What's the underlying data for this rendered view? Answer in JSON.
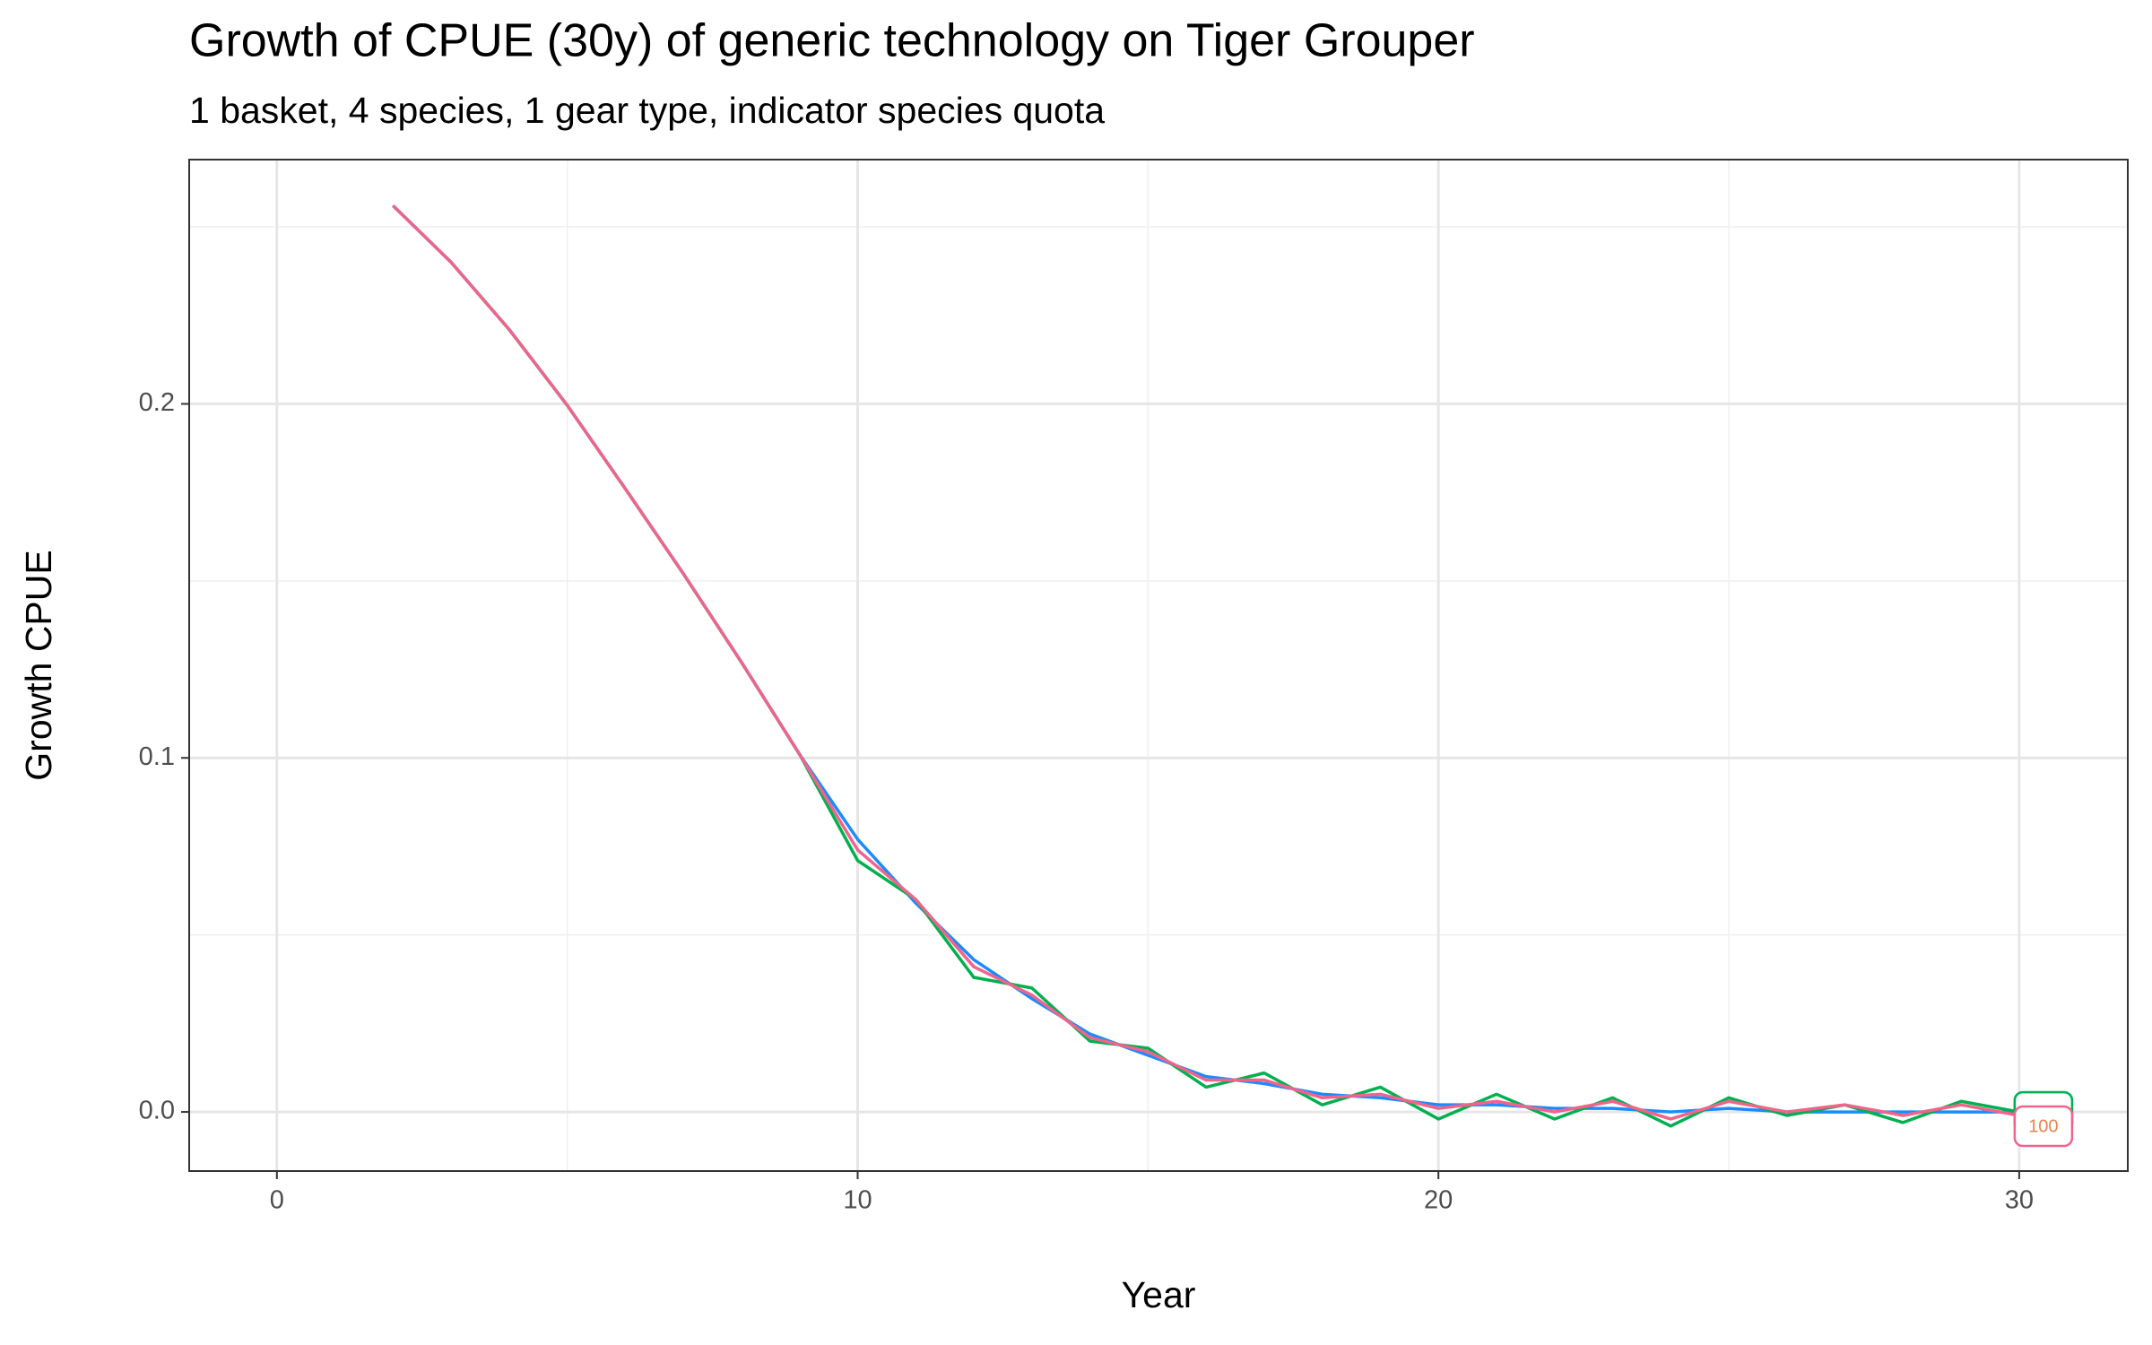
{
  "chart_data": {
    "type": "line",
    "title": "Growth of CPUE (30y) of generic technology on Tiger Grouper",
    "subtitle": "1 basket, 4 species, 1 gear type, indicator species quota",
    "x_label": "Year",
    "y_label": "Growth CPUE",
    "x": [
      2,
      3,
      4,
      5,
      6,
      7,
      8,
      9,
      10,
      11,
      12,
      13,
      14,
      15,
      16,
      17,
      18,
      19,
      20,
      21,
      22,
      23,
      24,
      25,
      26,
      27,
      28,
      29,
      30
    ],
    "series": [
      {
        "color": "#1a8cff",
        "values": [
          0.256,
          0.24,
          0.221,
          0.1996,
          0.176,
          0.152,
          0.127,
          0.101,
          0.077,
          0.059,
          0.043,
          0.032,
          0.022,
          0.016,
          0.01,
          0.008,
          0.005,
          0.004,
          0.002,
          0.002,
          0.001,
          0.001,
          0.0,
          0.001,
          0.0,
          0.0,
          0.0,
          0.0,
          0.0
        ]
      },
      {
        "color": "#00b050",
        "values": [
          0.256,
          0.24,
          0.221,
          0.1996,
          0.176,
          0.152,
          0.127,
          0.101,
          0.071,
          0.06,
          0.038,
          0.035,
          0.02,
          0.018,
          0.007,
          0.011,
          0.002,
          0.007,
          -0.002,
          0.005,
          -0.002,
          0.004,
          -0.004,
          0.004,
          -0.001,
          0.002,
          -0.003,
          0.003,
          0.0
        ]
      },
      {
        "name": "100",
        "color": "#f0648c",
        "label_color": "#e8844a",
        "values": [
          0.256,
          0.24,
          0.221,
          0.1996,
          0.176,
          0.152,
          0.127,
          0.101,
          0.074,
          0.06,
          0.041,
          0.033,
          0.021,
          0.017,
          0.009,
          0.009,
          0.004,
          0.005,
          0.001,
          0.003,
          0.0,
          0.003,
          -0.002,
          0.003,
          0.0,
          0.002,
          -0.001,
          0.002,
          -0.001
        ]
      }
    ],
    "xlim": [
      -1.51,
      31.87
    ],
    "ylim": [
      -0.0167,
      0.269
    ],
    "xticks": [
      0,
      10,
      20,
      30
    ],
    "yticks": [
      {
        "value": 0,
        "label": "0.0"
      },
      0.1,
      0.2
    ],
    "grid": true
  }
}
